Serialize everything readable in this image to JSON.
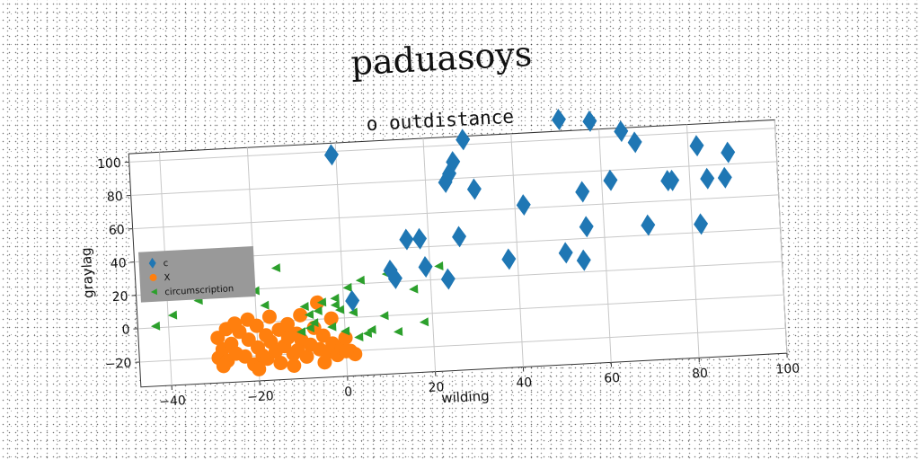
{
  "suptitle": "paduasoys",
  "chart_data": {
    "type": "scatter",
    "title": "o outdistance",
    "xlabel": "wilding",
    "ylabel": "graylag",
    "xlim": [
      -47,
      100
    ],
    "ylim": [
      -35,
      105
    ],
    "xticks": [
      -40,
      -20,
      0,
      20,
      40,
      60,
      80,
      100
    ],
    "yticks": [
      -20,
      0,
      20,
      40,
      60,
      80,
      100
    ],
    "grid": true,
    "legend_position": "center-left",
    "legend_background": "#999999",
    "series": [
      {
        "name": "c",
        "color": "#1f77b4",
        "marker": "diamond",
        "x": [
          -1,
          2,
          11,
          12,
          15,
          18,
          19,
          24,
          24.5,
          25.5,
          26.5,
          27,
          29,
          31,
          38,
          42,
          51,
          51,
          55,
          55.5,
          56,
          58,
          62,
          65,
          68,
          70,
          75,
          76,
          82,
          82,
          84,
          88,
          89
        ],
        "y": [
          98,
          10,
          27,
          22,
          45,
          45,
          28,
          20,
          78,
          83,
          90,
          45,
          103,
          73,
          30,
          62,
          112,
          32,
          27,
          68,
          47,
          110,
          74,
          103,
          96,
          46,
          72,
          72,
          92,
          45,
          72,
          72,
          87
        ]
      },
      {
        "name": "X",
        "color": "#ff7f0e",
        "marker": "circle",
        "x": [
          -29,
          -29,
          -28,
          -27,
          -27,
          -26,
          -25,
          -24,
          -23,
          -22,
          -21,
          -20,
          -20,
          -19,
          -18,
          -18,
          -17,
          -16,
          -15,
          -15,
          -14,
          -13,
          -13,
          -12,
          -11,
          -11,
          -10,
          -9,
          -8,
          -7,
          -6,
          -5,
          -4,
          -3,
          -2,
          -1,
          0,
          1,
          2,
          -25,
          -22,
          -17,
          -10,
          -6,
          -3,
          -28,
          -20,
          -12,
          -5,
          0
        ],
        "y": [
          -20,
          -8,
          -15,
          -3,
          -22,
          -12,
          -18,
          -5,
          -20,
          -10,
          -25,
          -15,
          -2,
          -20,
          -8,
          -22,
          -12,
          -18,
          -5,
          -25,
          -15,
          -10,
          -2,
          -20,
          -8,
          -18,
          -12,
          -22,
          -15,
          -5,
          -18,
          -10,
          -20,
          -15,
          -22,
          -18,
          -12,
          -20,
          -22,
          0,
          2,
          3,
          3,
          10,
          0,
          -25,
          -28,
          -27,
          -26,
          -20
        ]
      },
      {
        "name": "circumscription",
        "color": "#2ca02c",
        "marker": "triangle",
        "x": [
          -43,
          -39,
          -33,
          -27,
          -23,
          -22,
          -20,
          -18,
          -15,
          -10,
          -9,
          -8,
          -8,
          -7,
          -6,
          -5,
          -3,
          -2,
          -2,
          -1,
          0,
          1,
          2,
          3,
          4,
          5,
          6,
          9,
          10,
          12,
          16,
          18,
          22
        ],
        "y": [
          1,
          7,
          15,
          20,
          22,
          20,
          19,
          10,
          32,
          -7,
          8,
          3,
          -5,
          -2,
          5,
          10,
          -5,
          12,
          8,
          5,
          -8,
          18,
          3,
          -12,
          22,
          -10,
          -8,
          0,
          25,
          -10,
          15,
          -5,
          28
        ]
      }
    ]
  }
}
